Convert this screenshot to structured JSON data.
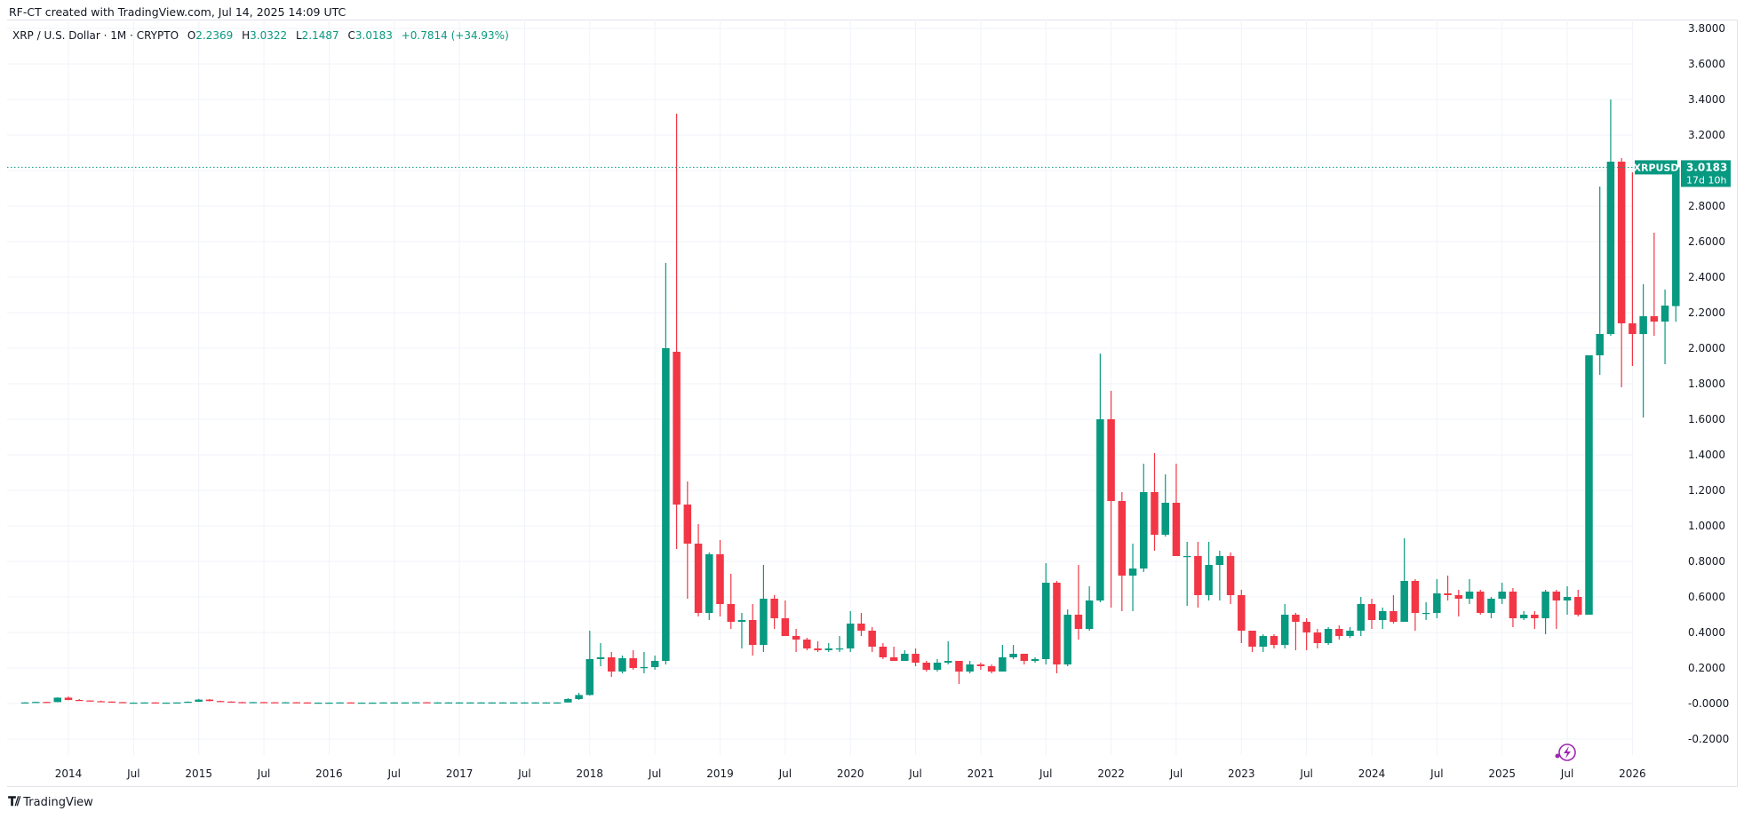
{
  "header": {
    "credit": "RF-CT created with TradingView.com, Jul 14, 2025 14:09 UTC"
  },
  "legend": {
    "symbol_desc": "XRP / U.S. Dollar · 1M · CRYPTO",
    "open_label": "O",
    "open": "2.2369",
    "high_label": "H",
    "high": "3.0322",
    "low_label": "L",
    "low": "2.1487",
    "close_label": "C",
    "close": "3.0183",
    "change": "+0.7814 (+34.93%)"
  },
  "price_tag": {
    "symbol": "XRPUSD",
    "price": "3.0183",
    "countdown": "17d 10h"
  },
  "footer": {
    "logo_text": "TradingView"
  },
  "colors": {
    "up": "#089981",
    "down": "#f23645",
    "grid": "#f0f3fa",
    "axis_text": "#131722",
    "price_line": "#089981",
    "event_icon": "#9c27b0"
  },
  "chart_data": {
    "type": "candlestick",
    "title": "XRP / U.S. Dollar · 1M · CRYPTO",
    "xlabel": "",
    "ylabel": "",
    "ylim": [
      -0.3,
      3.85
    ],
    "grid": true,
    "y_ticks": [
      "3.8000",
      "3.6000",
      "3.4000",
      "3.2000",
      "3.0000",
      "2.8000",
      "2.6000",
      "2.4000",
      "2.2000",
      "2.0000",
      "1.8000",
      "1.6000",
      "1.4000",
      "1.2000",
      "1.0000",
      "0.8000",
      "0.6000",
      "0.4000",
      "0.2000",
      "-0.0000",
      "-0.2000"
    ],
    "x_ticks": [
      "2014",
      "Jul",
      "2015",
      "Jul",
      "2016",
      "Jul",
      "2017",
      "Jul",
      "2018",
      "Jul",
      "2019",
      "Jul",
      "2020",
      "Jul",
      "2021",
      "Jul",
      "2022",
      "Jul",
      "2023",
      "Jul",
      "2024",
      "Jul",
      "2025",
      "Jul",
      "2026"
    ],
    "start_month": "2013-09",
    "ohlc": [
      [
        0.005,
        0.007,
        0.004,
        0.006
      ],
      [
        0.006,
        0.01,
        0.005,
        0.009
      ],
      [
        0.009,
        0.01,
        0.006,
        0.008
      ],
      [
        0.008,
        0.035,
        0.007,
        0.033
      ],
      [
        0.033,
        0.04,
        0.018,
        0.02
      ],
      [
        0.02,
        0.025,
        0.015,
        0.017
      ],
      [
        0.017,
        0.018,
        0.012,
        0.013
      ],
      [
        0.013,
        0.016,
        0.01,
        0.011
      ],
      [
        0.011,
        0.012,
        0.007,
        0.008
      ],
      [
        0.008,
        0.009,
        0.004,
        0.005
      ],
      [
        0.005,
        0.006,
        0.004,
        0.005
      ],
      [
        0.005,
        0.006,
        0.004,
        0.006
      ],
      [
        0.006,
        0.007,
        0.005,
        0.005
      ],
      [
        0.005,
        0.006,
        0.004,
        0.005
      ],
      [
        0.005,
        0.006,
        0.004,
        0.006
      ],
      [
        0.006,
        0.012,
        0.005,
        0.01
      ],
      [
        0.01,
        0.026,
        0.009,
        0.022
      ],
      [
        0.022,
        0.025,
        0.012,
        0.014
      ],
      [
        0.014,
        0.016,
        0.01,
        0.011
      ],
      [
        0.011,
        0.012,
        0.007,
        0.008
      ],
      [
        0.008,
        0.01,
        0.006,
        0.007
      ],
      [
        0.007,
        0.009,
        0.006,
        0.008
      ],
      [
        0.008,
        0.009,
        0.006,
        0.007
      ],
      [
        0.007,
        0.008,
        0.005,
        0.006
      ],
      [
        0.006,
        0.008,
        0.005,
        0.007
      ],
      [
        0.007,
        0.008,
        0.005,
        0.006
      ],
      [
        0.006,
        0.007,
        0.004,
        0.005
      ],
      [
        0.005,
        0.006,
        0.004,
        0.005
      ],
      [
        0.005,
        0.006,
        0.004,
        0.005
      ],
      [
        0.005,
        0.007,
        0.004,
        0.006
      ],
      [
        0.006,
        0.007,
        0.005,
        0.005
      ],
      [
        0.005,
        0.006,
        0.004,
        0.005
      ],
      [
        0.005,
        0.006,
        0.004,
        0.005
      ],
      [
        0.005,
        0.006,
        0.004,
        0.006
      ],
      [
        0.006,
        0.007,
        0.005,
        0.006
      ],
      [
        0.006,
        0.007,
        0.005,
        0.006
      ],
      [
        0.006,
        0.008,
        0.005,
        0.007
      ],
      [
        0.007,
        0.008,
        0.005,
        0.006
      ],
      [
        0.006,
        0.007,
        0.005,
        0.006
      ],
      [
        0.006,
        0.007,
        0.005,
        0.006
      ],
      [
        0.006,
        0.007,
        0.005,
        0.006
      ],
      [
        0.006,
        0.007,
        0.005,
        0.006
      ],
      [
        0.006,
        0.007,
        0.005,
        0.006
      ],
      [
        0.006,
        0.007,
        0.005,
        0.006
      ],
      [
        0.006,
        0.007,
        0.005,
        0.006
      ],
      [
        0.006,
        0.007,
        0.005,
        0.006
      ],
      [
        0.006,
        0.007,
        0.005,
        0.006
      ],
      [
        0.006,
        0.007,
        0.005,
        0.006
      ],
      [
        0.006,
        0.007,
        0.005,
        0.006
      ],
      [
        0.006,
        0.007,
        0.005,
        0.006
      ],
      [
        0.006,
        0.03,
        0.006,
        0.025
      ],
      [
        0.025,
        0.06,
        0.02,
        0.048
      ],
      [
        0.048,
        0.41,
        0.045,
        0.25
      ],
      [
        0.25,
        0.34,
        0.21,
        0.26
      ],
      [
        0.26,
        0.29,
        0.15,
        0.18
      ],
      [
        0.18,
        0.27,
        0.17,
        0.255
      ],
      [
        0.255,
        0.3,
        0.19,
        0.2
      ],
      [
        0.2,
        0.29,
        0.17,
        0.205
      ],
      [
        0.205,
        0.27,
        0.19,
        0.24
      ],
      [
        0.24,
        2.48,
        0.22,
        2.0
      ],
      [
        1.98,
        3.32,
        0.87,
        1.12
      ],
      [
        1.12,
        1.25,
        0.59,
        0.9
      ],
      [
        0.9,
        1.01,
        0.49,
        0.51
      ],
      [
        0.51,
        0.85,
        0.47,
        0.84
      ],
      [
        0.84,
        0.92,
        0.49,
        0.56
      ],
      [
        0.56,
        0.73,
        0.42,
        0.46
      ],
      [
        0.46,
        0.51,
        0.31,
        0.47
      ],
      [
        0.47,
        0.56,
        0.27,
        0.33
      ],
      [
        0.33,
        0.78,
        0.29,
        0.59
      ],
      [
        0.59,
        0.61,
        0.42,
        0.48
      ],
      [
        0.48,
        0.58,
        0.38,
        0.38
      ],
      [
        0.38,
        0.42,
        0.29,
        0.36
      ],
      [
        0.36,
        0.37,
        0.3,
        0.31
      ],
      [
        0.31,
        0.35,
        0.29,
        0.3
      ],
      [
        0.3,
        0.34,
        0.29,
        0.31
      ],
      [
        0.31,
        0.38,
        0.29,
        0.31
      ],
      [
        0.31,
        0.52,
        0.29,
        0.45
      ],
      [
        0.45,
        0.51,
        0.38,
        0.41
      ],
      [
        0.41,
        0.43,
        0.29,
        0.32
      ],
      [
        0.32,
        0.34,
        0.25,
        0.26
      ],
      [
        0.26,
        0.32,
        0.24,
        0.24
      ],
      [
        0.24,
        0.3,
        0.24,
        0.28
      ],
      [
        0.28,
        0.31,
        0.21,
        0.23
      ],
      [
        0.23,
        0.24,
        0.18,
        0.19
      ],
      [
        0.19,
        0.25,
        0.18,
        0.23
      ],
      [
        0.23,
        0.35,
        0.22,
        0.24
      ],
      [
        0.24,
        0.24,
        0.11,
        0.18
      ],
      [
        0.18,
        0.24,
        0.17,
        0.22
      ],
      [
        0.22,
        0.23,
        0.19,
        0.21
      ],
      [
        0.21,
        0.22,
        0.17,
        0.18
      ],
      [
        0.18,
        0.33,
        0.18,
        0.26
      ],
      [
        0.26,
        0.33,
        0.25,
        0.28
      ],
      [
        0.28,
        0.28,
        0.22,
        0.24
      ],
      [
        0.24,
        0.26,
        0.23,
        0.25
      ],
      [
        0.25,
        0.79,
        0.22,
        0.68
      ],
      [
        0.68,
        0.69,
        0.17,
        0.22
      ],
      [
        0.22,
        0.53,
        0.21,
        0.5
      ],
      [
        0.5,
        0.78,
        0.36,
        0.42
      ],
      [
        0.42,
        0.66,
        0.41,
        0.58
      ],
      [
        0.58,
        1.97,
        0.57,
        1.6
      ],
      [
        1.6,
        1.76,
        0.54,
        1.14
      ],
      [
        1.14,
        1.19,
        0.52,
        0.72
      ],
      [
        0.72,
        0.9,
        0.52,
        0.76
      ],
      [
        0.76,
        1.35,
        0.74,
        1.19
      ],
      [
        1.19,
        1.41,
        0.86,
        0.95
      ],
      [
        0.95,
        1.29,
        0.94,
        1.13
      ],
      [
        1.13,
        1.35,
        0.85,
        0.83
      ],
      [
        0.83,
        0.91,
        0.55,
        0.83
      ],
      [
        0.83,
        0.91,
        0.54,
        0.61
      ],
      [
        0.61,
        0.91,
        0.58,
        0.78
      ],
      [
        0.78,
        0.86,
        0.58,
        0.83
      ],
      [
        0.83,
        0.85,
        0.56,
        0.61
      ],
      [
        0.61,
        0.64,
        0.34,
        0.41
      ],
      [
        0.41,
        0.41,
        0.29,
        0.32
      ],
      [
        0.32,
        0.39,
        0.29,
        0.38
      ],
      [
        0.38,
        0.39,
        0.31,
        0.33
      ],
      [
        0.33,
        0.56,
        0.31,
        0.5
      ],
      [
        0.5,
        0.51,
        0.3,
        0.46
      ],
      [
        0.46,
        0.48,
        0.3,
        0.4
      ],
      [
        0.4,
        0.42,
        0.31,
        0.34
      ],
      [
        0.34,
        0.43,
        0.33,
        0.42
      ],
      [
        0.42,
        0.44,
        0.36,
        0.38
      ],
      [
        0.38,
        0.43,
        0.37,
        0.41
      ],
      [
        0.41,
        0.6,
        0.38,
        0.56
      ],
      [
        0.56,
        0.59,
        0.42,
        0.47
      ],
      [
        0.47,
        0.54,
        0.42,
        0.52
      ],
      [
        0.52,
        0.61,
        0.45,
        0.46
      ],
      [
        0.46,
        0.93,
        0.46,
        0.69
      ],
      [
        0.69,
        0.7,
        0.41,
        0.51
      ],
      [
        0.51,
        0.57,
        0.47,
        0.51
      ],
      [
        0.51,
        0.7,
        0.48,
        0.62
      ],
      [
        0.62,
        0.72,
        0.58,
        0.61
      ],
      [
        0.61,
        0.64,
        0.49,
        0.59
      ],
      [
        0.59,
        0.7,
        0.56,
        0.63
      ],
      [
        0.63,
        0.64,
        0.5,
        0.51
      ],
      [
        0.51,
        0.6,
        0.48,
        0.59
      ],
      [
        0.59,
        0.68,
        0.56,
        0.63
      ],
      [
        0.63,
        0.65,
        0.43,
        0.48
      ],
      [
        0.48,
        0.52,
        0.47,
        0.5
      ],
      [
        0.5,
        0.52,
        0.42,
        0.48
      ],
      [
        0.48,
        0.64,
        0.39,
        0.63
      ],
      [
        0.63,
        0.64,
        0.42,
        0.58
      ],
      [
        0.58,
        0.66,
        0.5,
        0.6
      ],
      [
        0.6,
        0.64,
        0.49,
        0.5
      ],
      [
        0.5,
        1.96,
        0.5,
        1.96
      ],
      [
        1.96,
        2.91,
        1.85,
        2.08
      ],
      [
        2.08,
        3.4,
        2.07,
        3.05
      ],
      [
        3.05,
        3.07,
        1.78,
        2.14
      ],
      [
        2.14,
        2.99,
        1.9,
        2.08
      ],
      [
        2.08,
        2.36,
        1.61,
        2.18
      ],
      [
        2.18,
        2.65,
        2.07,
        2.15
      ],
      [
        2.15,
        2.33,
        1.91,
        2.24
      ],
      [
        2.237,
        3.032,
        2.149,
        3.018
      ]
    ]
  }
}
